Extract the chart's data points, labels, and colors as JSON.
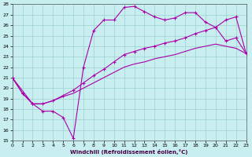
{
  "xlabel": "Windchill (Refroidissement éolien,°C)",
  "background_color": "#c8eef0",
  "grid_color": "#9ed0d0",
  "line_color": "#aa00aa",
  "xlim": [
    0,
    23
  ],
  "ylim": [
    15,
    28
  ],
  "xticks": [
    0,
    1,
    2,
    3,
    4,
    5,
    6,
    7,
    8,
    9,
    10,
    11,
    12,
    13,
    14,
    15,
    16,
    17,
    18,
    19,
    20,
    21,
    22,
    23
  ],
  "yticks": [
    15,
    16,
    17,
    18,
    19,
    20,
    21,
    22,
    23,
    24,
    25,
    26,
    27,
    28
  ],
  "series1_x": [
    0,
    1,
    2,
    3,
    4,
    5,
    6,
    7,
    8,
    9,
    10,
    11,
    12,
    13,
    14,
    15,
    16,
    17,
    18,
    19,
    20,
    21,
    22,
    23
  ],
  "series1_y": [
    21.0,
    19.5,
    18.5,
    17.8,
    17.8,
    17.2,
    15.2,
    22.0,
    25.5,
    26.5,
    26.5,
    27.7,
    27.8,
    27.3,
    26.8,
    26.5,
    26.7,
    27.2,
    27.2,
    26.3,
    25.8,
    26.5,
    26.8,
    23.3
  ],
  "series2_x": [
    0,
    1,
    2,
    3,
    4,
    5,
    6,
    7,
    8,
    9,
    10,
    11,
    12,
    13,
    14,
    15,
    16,
    17,
    18,
    19,
    20,
    21,
    22,
    23
  ],
  "series2_y": [
    21.0,
    19.5,
    18.5,
    18.5,
    18.8,
    19.3,
    19.8,
    20.5,
    21.2,
    21.8,
    22.5,
    23.2,
    23.5,
    23.8,
    24.0,
    24.3,
    24.5,
    24.8,
    25.2,
    25.5,
    25.8,
    24.5,
    24.8,
    23.3
  ],
  "series3_x": [
    0,
    2,
    3,
    4,
    5,
    6,
    7,
    8,
    9,
    10,
    11,
    12,
    13,
    14,
    15,
    16,
    17,
    18,
    19,
    20,
    21,
    22,
    23
  ],
  "series3_y": [
    21.0,
    18.5,
    18.5,
    18.8,
    19.2,
    19.5,
    20.0,
    20.5,
    21.0,
    21.5,
    22.0,
    22.3,
    22.5,
    22.8,
    23.0,
    23.2,
    23.5,
    23.8,
    24.0,
    24.2,
    24.0,
    23.8,
    23.3
  ]
}
